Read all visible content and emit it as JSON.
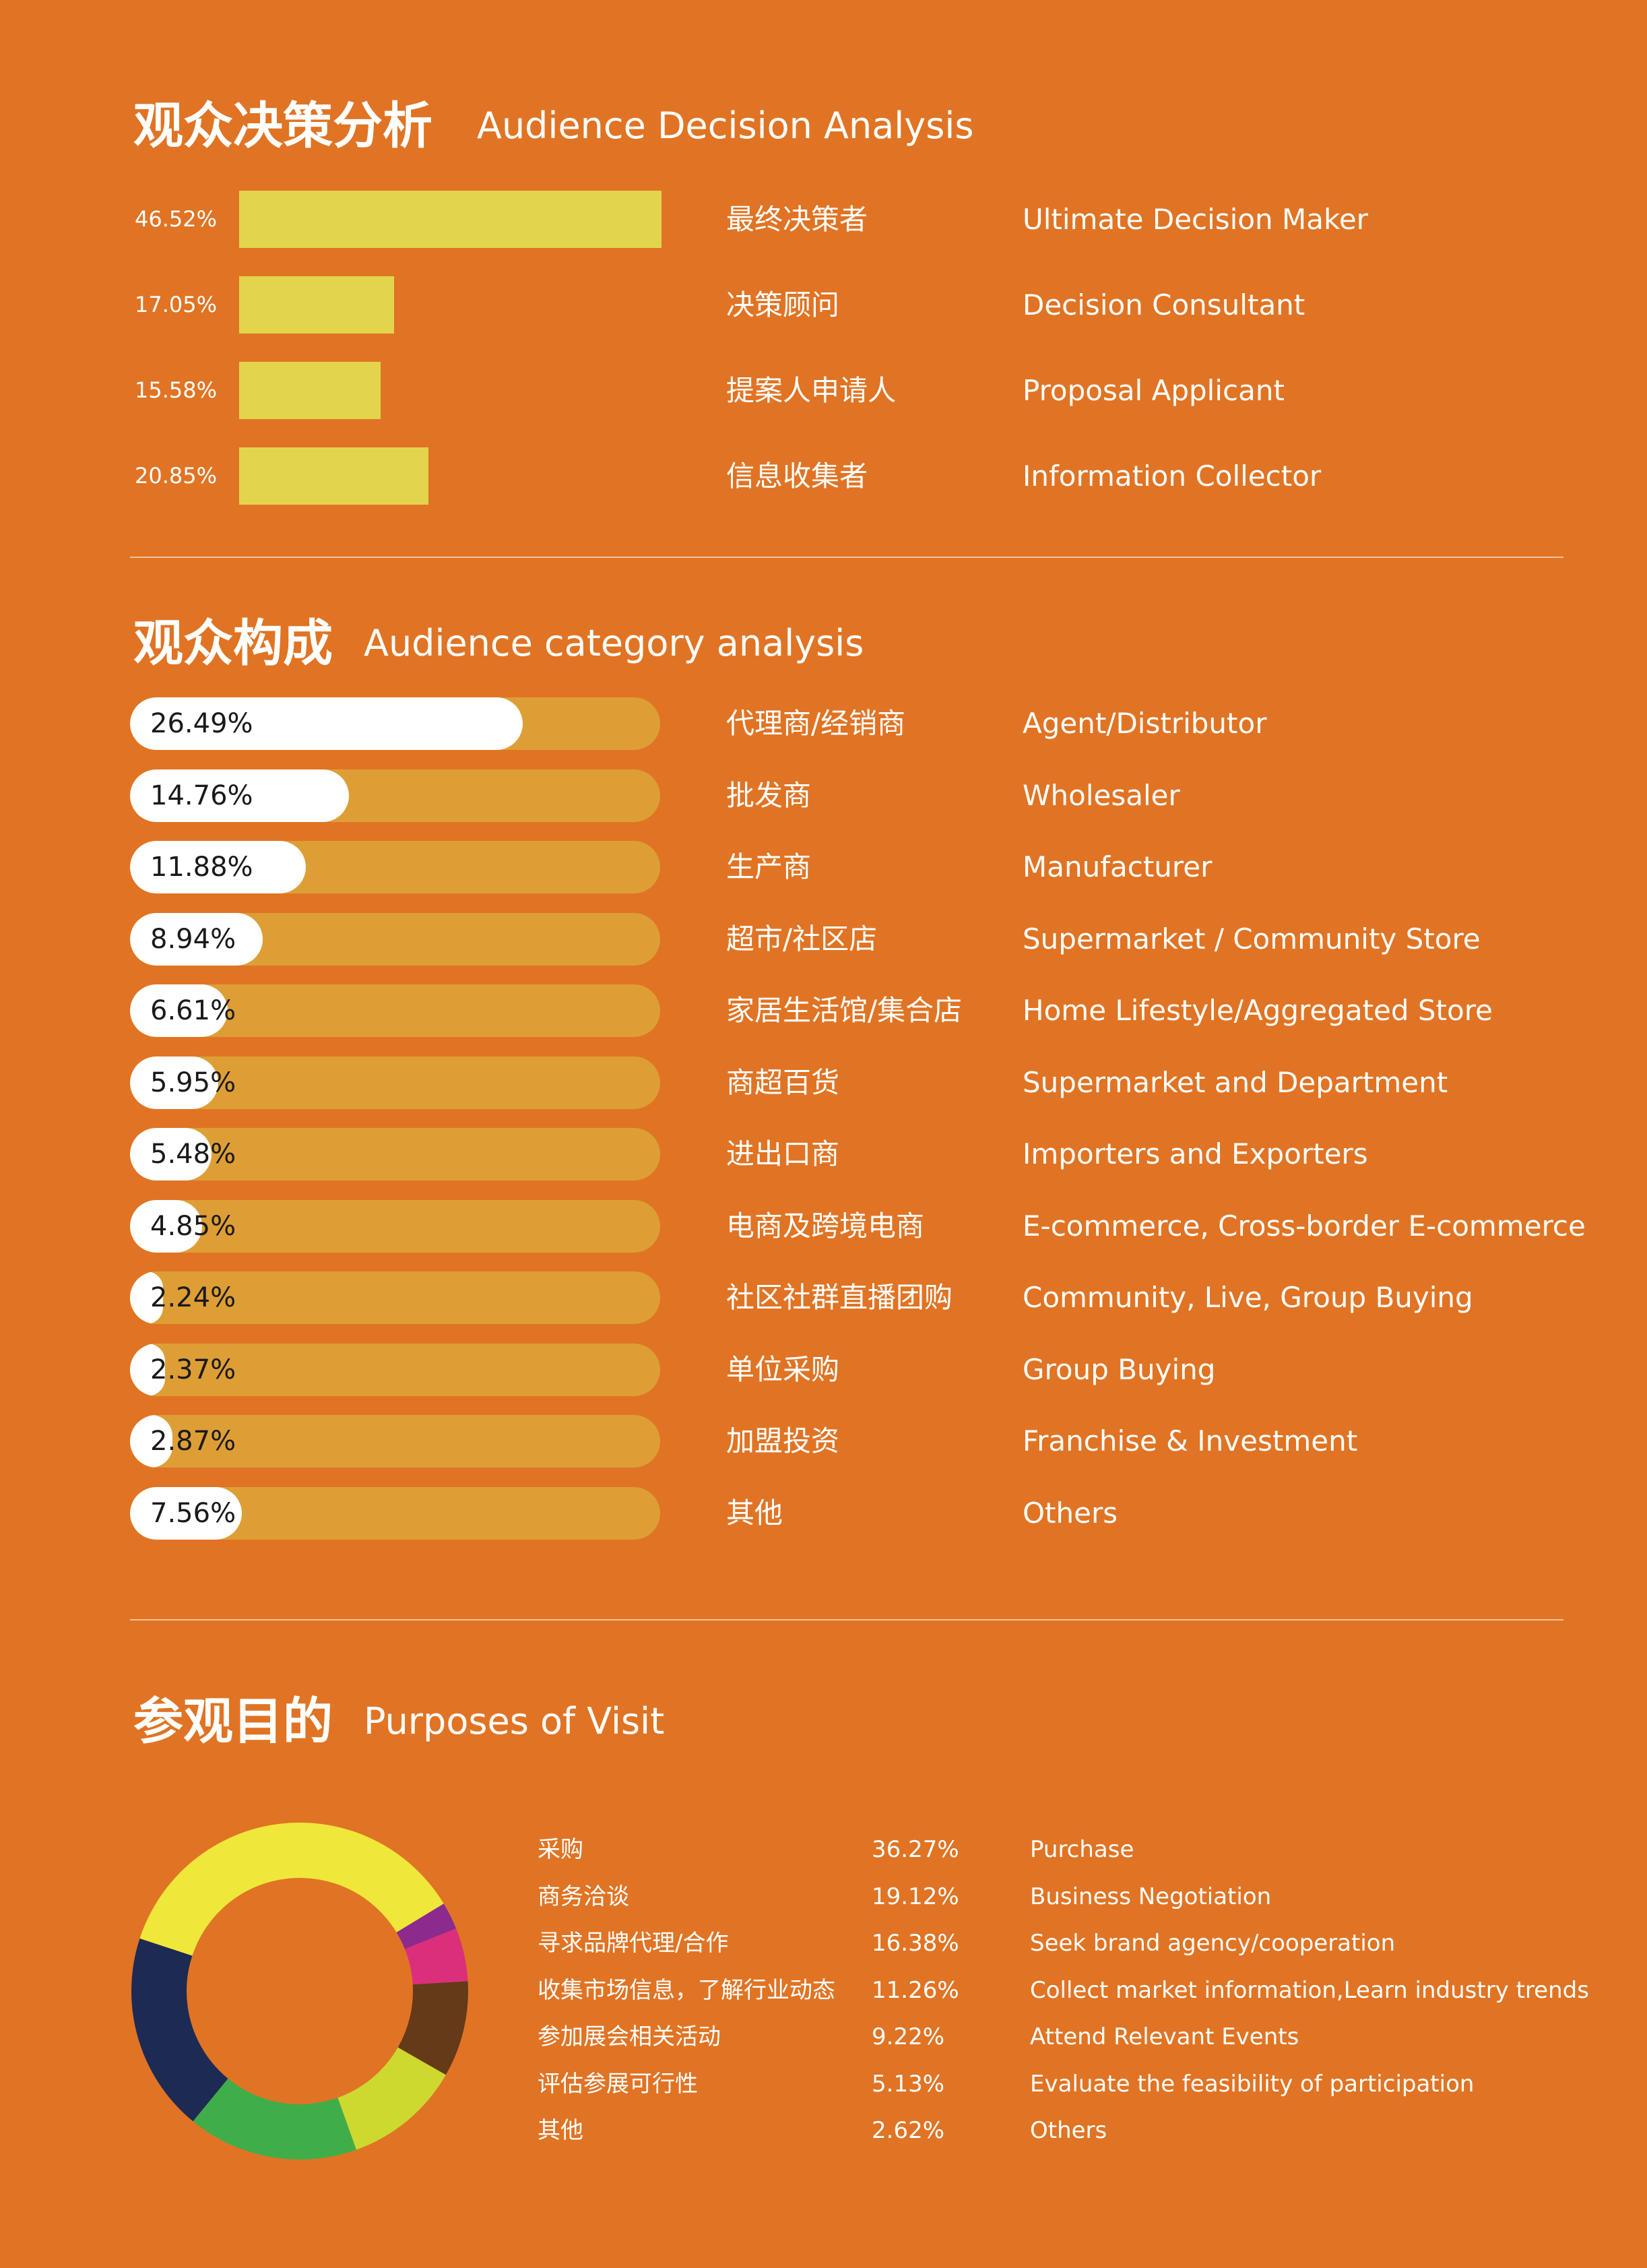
{
  "section1": {
    "title_cn": "观众决策分析",
    "title_en": "Audience Decision  Analysis",
    "bar_color": "#E3D44D",
    "items": [
      {
        "pct": "46.52%",
        "value": 46.52,
        "cn": "最终决策者",
        "en": "Ultimate Decision Maker"
      },
      {
        "pct": "17.05%",
        "value": 17.05,
        "cn": "决策顾问",
        "en": "Decision Consultant"
      },
      {
        "pct": "15.58%",
        "value": 15.58,
        "cn": "提案人申请人",
        "en": "Proposal Applicant"
      },
      {
        "pct": "20.85%",
        "value": 20.85,
        "cn": "信息收集者",
        "en": "Information Collector"
      }
    ]
  },
  "section2": {
    "title_cn": "观众构成",
    "title_en": "Audience category analysis",
    "track_color": "#DE9E36",
    "fill_color": "#FFFFFF",
    "items": [
      {
        "pct": "26.49%",
        "value": 26.49,
        "cn": "代理商/经销商",
        "en": "Agent/Distributor"
      },
      {
        "pct": "14.76%",
        "value": 14.76,
        "cn": "批发商",
        "en": "Wholesaler"
      },
      {
        "pct": "11.88%",
        "value": 11.88,
        "cn": "生产商",
        "en": "Manufacturer"
      },
      {
        "pct": "8.94%",
        "value": 8.94,
        "cn": "超市/社区店",
        "en": "Supermarket / Community Store"
      },
      {
        "pct": "6.61%",
        "value": 6.61,
        "cn": "家居生活馆/集合店",
        "en": "Home Lifestyle/Aggregated Store"
      },
      {
        "pct": "5.95%",
        "value": 5.95,
        "cn": "商超百货",
        "en": "Supermarket and Department"
      },
      {
        "pct": "5.48%",
        "value": 5.48,
        "cn": "进出口商",
        "en": "Importers and Exporters"
      },
      {
        "pct": "4.85%",
        "value": 4.85,
        "cn": "电商及跨境电商",
        "en": "E-commerce, Cross-border E-commerce"
      },
      {
        "pct": "2.24%",
        "value": 2.24,
        "cn": "社区社群直播团购",
        "en": "Community, Live, Group Buying"
      },
      {
        "pct": "2.37%",
        "value": 2.37,
        "cn": "单位采购",
        "en": "Group Buying"
      },
      {
        "pct": "2.87%",
        "value": 2.87,
        "cn": "加盟投资",
        "en": "Franchise & Investment"
      },
      {
        "pct": "7.56%",
        "value": 7.56,
        "cn": "其他",
        "en": "Others"
      }
    ]
  },
  "section3": {
    "title_cn": "参观目的",
    "title_en": "Purposes of Visit",
    "items": [
      {
        "cn": "采购",
        "pct": "36.27%",
        "value": 36.27,
        "en": "Purchase",
        "color": "#EFE83B"
      },
      {
        "cn": "商务洽谈",
        "pct": "19.12%",
        "value": 19.12,
        "en": "Business Negotiation",
        "color": "#1D2A54"
      },
      {
        "cn": "寻求品牌代理/合作",
        "pct": "16.38%",
        "value": 16.38,
        "en": "Seek brand agency/cooperation",
        "color": "#3FAE49"
      },
      {
        "cn": "收集市场信息，了解行业动态",
        "pct": "11.26%",
        "value": 11.26,
        "en": "Collect market information,Learn industry trends",
        "color": "#CDD92F"
      },
      {
        "cn": "参加展会相关活动",
        "pct": "9.22%",
        "value": 9.22,
        "en": "Attend Relevant Events",
        "color": "#643A18"
      },
      {
        "cn": "评估参展可行性",
        "pct": "5.13%",
        "value": 5.13,
        "en": "Evaluate the feasibility of participation",
        "color": "#DB2F7C"
      },
      {
        "cn": "其他",
        "pct": "2.62%",
        "value": 2.62,
        "en": "Others",
        "color": "#8C2A8E"
      }
    ]
  },
  "chart_data": [
    {
      "type": "bar",
      "title": "观众决策分析 Audience Decision  Analysis",
      "categories": [
        "Ultimate Decision Maker",
        "Decision Consultant",
        "Proposal Applicant",
        "Information Collector"
      ],
      "values": [
        46.52,
        17.05,
        15.58,
        20.85
      ]
    },
    {
      "type": "bar",
      "title": "观众构成 Audience category analysis",
      "categories": [
        "Agent/Distributor",
        "Wholesaler",
        "Manufacturer",
        "Supermarket / Community Store",
        "Home Lifestyle/Aggregated Store",
        "Supermarket and Department",
        "Importers and Exporters",
        "E-commerce, Cross-border E-commerce",
        "Community, Live, Group Buying",
        "Group Buying",
        "Franchise & Investment",
        "Others"
      ],
      "values": [
        26.49,
        14.76,
        11.88,
        8.94,
        6.61,
        5.95,
        5.48,
        4.85,
        2.24,
        2.37,
        2.87,
        7.56
      ]
    },
    {
      "type": "pie",
      "title": "参观目的 Purposes of Visit",
      "categories": [
        "Purchase",
        "Business Negotiation",
        "Seek brand agency/cooperation",
        "Collect market information,Learn industry trends",
        "Attend Relevant Events",
        "Evaluate the feasibility of participation",
        "Others"
      ],
      "values": [
        36.27,
        19.12,
        16.38,
        11.26,
        9.22,
        5.13,
        2.62
      ]
    }
  ]
}
